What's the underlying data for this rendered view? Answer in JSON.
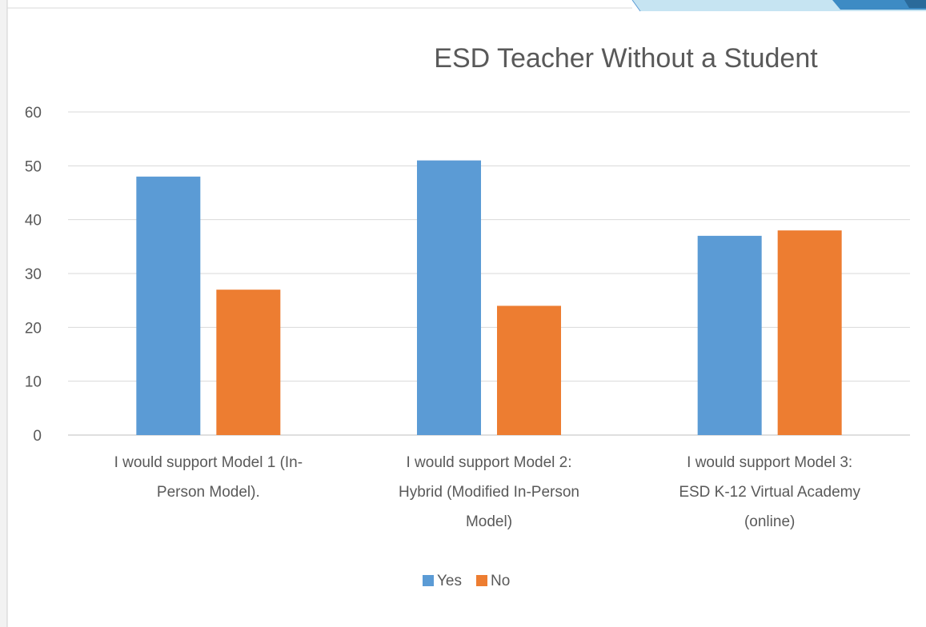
{
  "chart_data": {
    "type": "bar",
    "title": "ESD Teacher Without a Student",
    "categories": [
      [
        "I would support Model 1 (In-",
        "Person Model)."
      ],
      [
        "I would support Model 2:",
        "Hybrid (Modified In-Person",
        "Model)"
      ],
      [
        "I would support Model 3:",
        "ESD K-12 Virtual Academy",
        "(online)"
      ]
    ],
    "series": [
      {
        "name": "Yes",
        "color": "#5B9BD5",
        "values": [
          48,
          51,
          37
        ]
      },
      {
        "name": "No",
        "color": "#ED7D31",
        "values": [
          27,
          24,
          38
        ]
      }
    ],
    "ylim": [
      0,
      60
    ],
    "yticks": [
      0,
      10,
      20,
      30,
      40,
      50,
      60
    ],
    "grid": true,
    "legend_position": "bottom"
  }
}
